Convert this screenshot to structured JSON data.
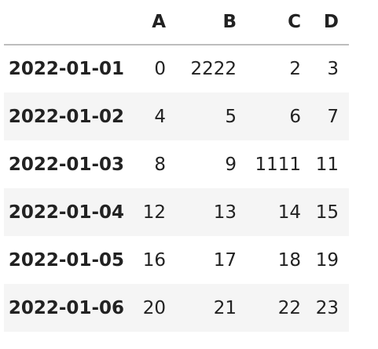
{
  "table": {
    "columns": [
      "A",
      "B",
      "C",
      "D"
    ],
    "rows": [
      {
        "index": "2022-01-01",
        "cells": [
          "0",
          "2222",
          "2",
          "3"
        ]
      },
      {
        "index": "2022-01-02",
        "cells": [
          "4",
          "5",
          "6",
          "7"
        ]
      },
      {
        "index": "2022-01-03",
        "cells": [
          "8",
          "9",
          "1111",
          "11"
        ]
      },
      {
        "index": "2022-01-04",
        "cells": [
          "12",
          "13",
          "14",
          "15"
        ]
      },
      {
        "index": "2022-01-05",
        "cells": [
          "16",
          "17",
          "18",
          "19"
        ]
      },
      {
        "index": "2022-01-06",
        "cells": [
          "20",
          "21",
          "22",
          "23"
        ]
      }
    ]
  },
  "colors": {
    "header_rule": "#bdbdbd",
    "stripe": "#f5f5f5",
    "text": "#222222"
  }
}
